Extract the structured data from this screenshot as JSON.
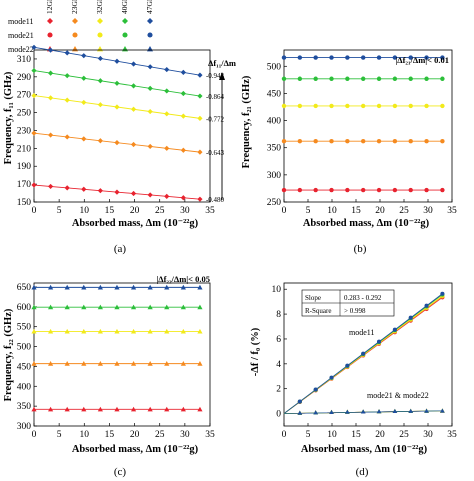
{
  "legend": {
    "columns": [
      "12GPa",
      "23GPa",
      "32GPa",
      "40GPa",
      "47GPa"
    ],
    "rows": [
      {
        "name": "mode11",
        "marker": "diamond"
      },
      {
        "name": "mode21",
        "marker": "circle"
      },
      {
        "name": "mode22",
        "marker": "triangle"
      }
    ],
    "colors": [
      "#e8232f",
      "#f58a1f",
      "#f2ea1a",
      "#2cbf3a",
      "#1f4e9e"
    ]
  },
  "chart_data": [
    {
      "type": "line",
      "panel_label": "(a)",
      "annotation": "Δf₁₁/Δm",
      "xlabel": "Absorbed mass, Δm (10⁻²²g)",
      "ylabel": "Frequency, f₁₁ (GHz)",
      "xlim": [
        0,
        35
      ],
      "ylim": [
        150,
        320
      ],
      "xticks": [
        0,
        5,
        10,
        15,
        20,
        25,
        30,
        35
      ],
      "yticks": [
        150,
        170,
        190,
        210,
        230,
        250,
        270,
        290,
        310
      ],
      "xtick_labels": [
        "0",
        "5",
        "10",
        "15",
        "20",
        "25",
        "30",
        "35"
      ],
      "ytick_labels": [
        "150",
        "170",
        "190",
        "210",
        "230",
        "250",
        "270",
        "290",
        "310"
      ],
      "x": [
        0,
        3.3,
        6.6,
        9.9,
        13.2,
        16.5,
        19.8,
        23.1,
        26.4,
        29.7,
        33
      ],
      "series": [
        {
          "name": "12GPa",
          "start": 169,
          "slope": -0.48,
          "slope_label": "-0.480",
          "color": "#e8232f"
        },
        {
          "name": "23GPa",
          "start": 227,
          "slope": -0.643,
          "slope_label": "-0.643",
          "color": "#f58a1f"
        },
        {
          "name": "32GPa",
          "start": 269,
          "slope": -0.772,
          "slope_label": "-0.772",
          "color": "#f2ea1a"
        },
        {
          "name": "40GPa",
          "start": 297,
          "slope": -0.864,
          "slope_label": "-0.864",
          "color": "#2cbf3a"
        },
        {
          "name": "47GPa",
          "start": 323,
          "slope": -0.943,
          "slope_label": "-0.943",
          "color": "#1f4e9e"
        }
      ],
      "marker": "diamond"
    },
    {
      "type": "line",
      "panel_label": "(b)",
      "annotation": "|Δf₂₁/Δm|< 0.01",
      "xlabel": "Absorbed mass, Δm (10⁻²²g)",
      "ylabel": "Frequency, f₂₁ (GHz)",
      "xlim": [
        0,
        35
      ],
      "ylim": [
        250,
        530
      ],
      "xticks": [
        0,
        5,
        10,
        15,
        20,
        25,
        30,
        35
      ],
      "yticks": [
        250,
        300,
        350,
        400,
        450,
        500
      ],
      "xtick_labels": [
        "0",
        "5",
        "10",
        "15",
        "20",
        "25",
        "30",
        "35"
      ],
      "ytick_labels": [
        "250",
        "300",
        "350",
        "400",
        "450",
        "500"
      ],
      "x": [
        0,
        3.3,
        6.6,
        9.9,
        13.2,
        16.5,
        19.8,
        23.1,
        26.4,
        29.7,
        33
      ],
      "series": [
        {
          "name": "12GPa",
          "start": 272,
          "slope": 0,
          "color": "#e8232f"
        },
        {
          "name": "23GPa",
          "start": 362,
          "slope": 0,
          "color": "#f58a1f"
        },
        {
          "name": "32GPa",
          "start": 427,
          "slope": 0,
          "color": "#f2ea1a"
        },
        {
          "name": "40GPa",
          "start": 477,
          "slope": 0,
          "color": "#2cbf3a"
        },
        {
          "name": "47GPa",
          "start": 516,
          "slope": 0,
          "color": "#1f4e9e"
        }
      ],
      "marker": "circle"
    },
    {
      "type": "line",
      "panel_label": "(c)",
      "annotation": "|Δf₂₂/Δm|< 0.05",
      "xlabel": "Absorbed mass, Δm (10⁻²²g)",
      "ylabel": "Frequency, f₂₂ (GHz)",
      "xlim": [
        0,
        35
      ],
      "ylim": [
        300,
        660
      ],
      "xticks": [
        0,
        5,
        10,
        15,
        20,
        25,
        30,
        35
      ],
      "yticks": [
        300,
        350,
        400,
        450,
        500,
        550,
        600,
        650
      ],
      "xtick_labels": [
        "0",
        "5",
        "10",
        "15",
        "20",
        "25",
        "30",
        "35"
      ],
      "ytick_labels": [
        "300",
        "350",
        "400",
        "450",
        "500",
        "550",
        "600",
        "650"
      ],
      "x": [
        0,
        3.3,
        6.6,
        9.9,
        13.2,
        16.5,
        19.8,
        23.1,
        26.4,
        29.7,
        33
      ],
      "series": [
        {
          "name": "12GPa",
          "start": 342,
          "slope": 0,
          "color": "#e8232f"
        },
        {
          "name": "23GPa",
          "start": 457,
          "slope": 0,
          "color": "#f58a1f"
        },
        {
          "name": "32GPa",
          "start": 538,
          "slope": 0,
          "color": "#f2ea1a"
        },
        {
          "name": "40GPa",
          "start": 599,
          "slope": 0,
          "color": "#2cbf3a"
        },
        {
          "name": "47GPa",
          "start": 649,
          "slope": 0,
          "color": "#1f4e9e"
        }
      ],
      "marker": "triangle"
    },
    {
      "type": "scatter",
      "panel_label": "(d)",
      "xlabel": "Absorbed mass, Δm (10⁻²²g)",
      "ylabel": "-Δf / f₀ (%)",
      "xlim": [
        0,
        35
      ],
      "ylim": [
        -1,
        10.5
      ],
      "xticks": [
        0,
        5,
        10,
        15,
        20,
        25,
        30,
        35
      ],
      "yticks": [
        0,
        2,
        4,
        6,
        8,
        10
      ],
      "xtick_labels": [
        "0",
        "5",
        "10",
        "15",
        "20",
        "25",
        "30",
        "35"
      ],
      "ytick_labels": [
        "0",
        "2",
        "4",
        "6",
        "8",
        "10"
      ],
      "stats_table": [
        {
          "label": "Slope",
          "value": "0.283 - 0.292"
        },
        {
          "label": "R-Square",
          "value": "> 0.998"
        }
      ],
      "annotations": [
        "mode11",
        "mode21 & mode22"
      ],
      "x": [
        0,
        3.3,
        6.6,
        9.9,
        13.2,
        16.5,
        19.8,
        23.1,
        26.4,
        29.7,
        33
      ],
      "mode11_slopes": [
        0.283,
        0.285,
        0.287,
        0.29,
        0.292
      ],
      "mode2x_values": [
        0,
        0.05,
        0.08,
        0.11,
        0.13,
        0.15,
        0.17,
        0.19,
        0.2,
        0.21,
        0.22
      ],
      "colors": [
        "#e8232f",
        "#f58a1f",
        "#f2ea1a",
        "#2cbf3a",
        "#1f4e9e"
      ]
    }
  ]
}
